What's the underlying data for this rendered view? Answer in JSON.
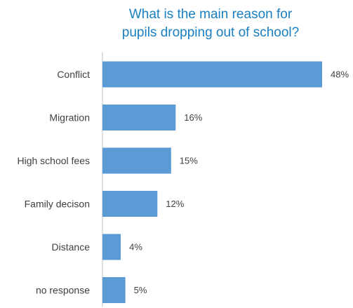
{
  "chart_data": {
    "type": "bar",
    "orientation": "horizontal",
    "title_lines": [
      "What is the main reason for",
      "pupils dropping out of school?"
    ],
    "categories": [
      "Conflict",
      "Migration",
      "High school fees",
      "Family decison",
      "Distance",
      "no response"
    ],
    "values": [
      48,
      16,
      15,
      12,
      4,
      5
    ],
    "value_labels": [
      "48%",
      "16%",
      "15%",
      "12%",
      "4%",
      "5%"
    ],
    "unit": "%",
    "xlim": [
      0,
      48
    ],
    "grid": false,
    "legend": "none",
    "colors": {
      "bar": "#5b9bd5",
      "title": "#1a7fbf",
      "axis": "#bfbfbf",
      "text": "#404040"
    }
  }
}
